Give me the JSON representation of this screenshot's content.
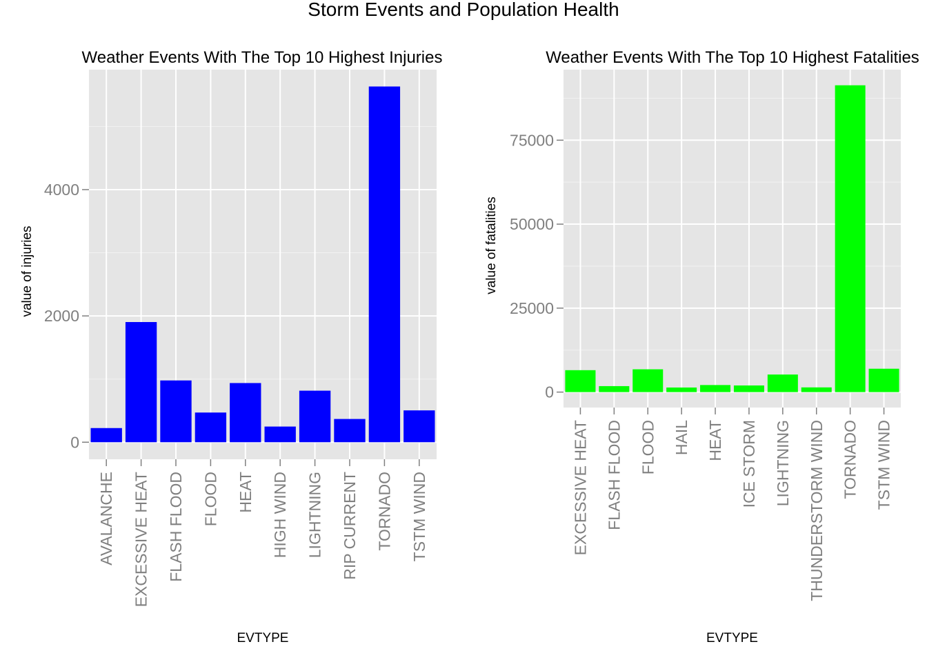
{
  "title": "Storm Events and Population Health",
  "chart_data": [
    {
      "type": "bar",
      "title": "Weather Events With The Top 10 Highest Injuries",
      "xlabel": "EVTYPE",
      "ylabel": "value of injuries",
      "categories": [
        "AVALANCHE",
        "EXCESSIVE HEAT",
        "FLASH FLOOD",
        "FLOOD",
        "HEAT",
        "HIGH WIND",
        "LIGHTNING",
        "RIP CURRENT",
        "TORNADO",
        "TSTM WIND"
      ],
      "values": [
        224,
        1903,
        978,
        470,
        937,
        248,
        816,
        368,
        5633,
        504
      ],
      "yticks": [
        0,
        2000,
        4000
      ],
      "ylim": [
        -270,
        5900
      ],
      "color": "#0000ff",
      "grid": true,
      "legend": "none"
    },
    {
      "type": "bar",
      "title": "Weather Events With The Top 10 Highest Fatalities",
      "xlabel": "EVTYPE",
      "ylabel": "value of fatalities",
      "categories": [
        "EXCESSIVE HEAT",
        "FLASH FLOOD",
        "FLOOD",
        "HAIL",
        "HEAT",
        "ICE STORM",
        "LIGHTNING",
        "THUNDERSTORM WIND",
        "TORNADO",
        "TSTM WIND"
      ],
      "values": [
        6525,
        1777,
        6789,
        1361,
        2100,
        1975,
        5230,
        1400,
        91346,
        6957
      ],
      "yticks": [
        0,
        25000,
        50000,
        75000
      ],
      "ylim": [
        -4600,
        96000
      ],
      "color": "#00ff00",
      "grid": true,
      "legend": "none"
    }
  ]
}
